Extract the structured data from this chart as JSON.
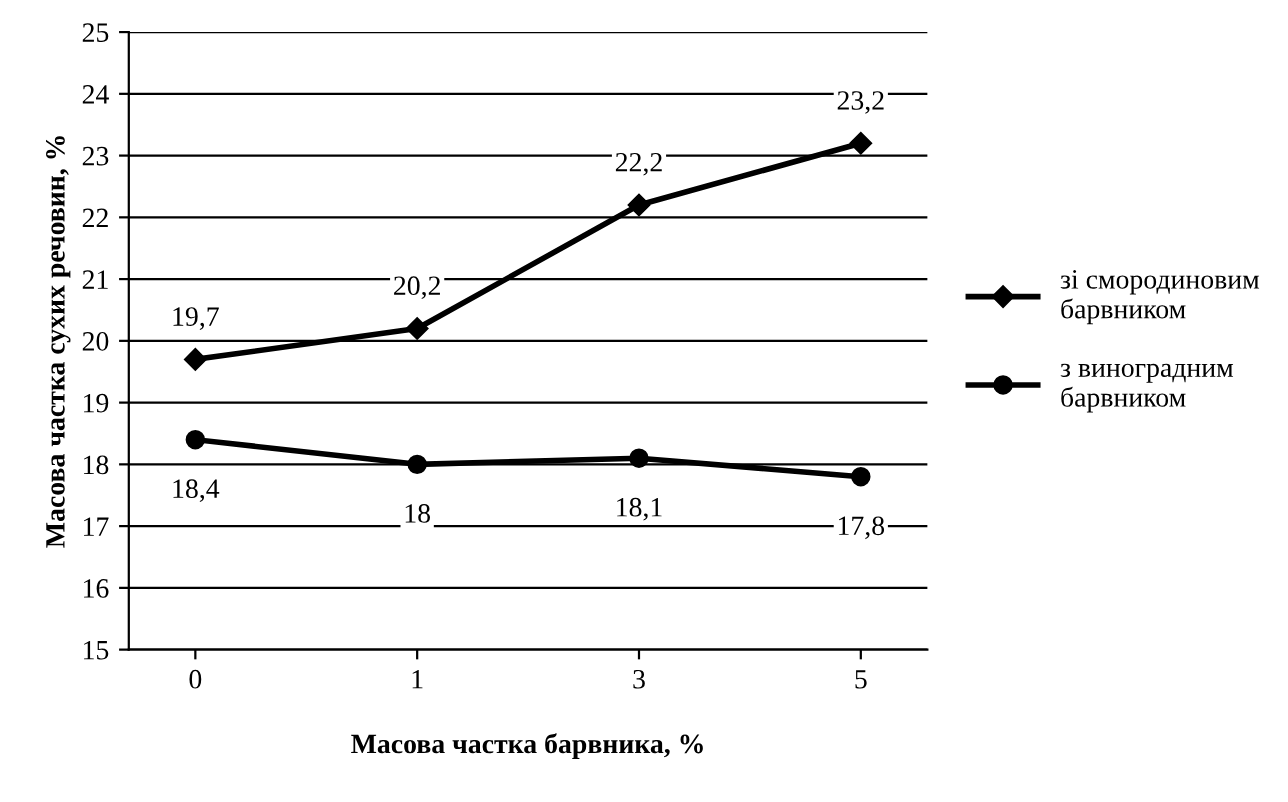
{
  "chart_data": {
    "type": "line",
    "xlabel": "Масова частка барвника, %",
    "ylabel": "Масова частка сухих речовин, %",
    "categories": [
      "0",
      "1",
      "3",
      "5"
    ],
    "series": [
      {
        "name": "зі смородиновим барвником",
        "color": "#000000",
        "marker": "diamond",
        "values": [
          19.7,
          20.2,
          22.2,
          23.2
        ],
        "value_labels": [
          "19,7",
          "20,2",
          "22,2",
          "23,2"
        ]
      },
      {
        "name": "з виноградним барвником",
        "color": "#000000",
        "marker": "circle",
        "values": [
          18.4,
          18,
          18.1,
          17.8
        ],
        "value_labels": [
          "18,4",
          "18",
          "18,1",
          "17,8"
        ]
      }
    ],
    "ylim": [
      15,
      25
    ],
    "yticks": [
      15,
      16,
      17,
      18,
      19,
      20,
      21,
      22,
      23,
      24,
      25
    ],
    "grid": "y",
    "legend": "right",
    "line_style": "solid"
  }
}
